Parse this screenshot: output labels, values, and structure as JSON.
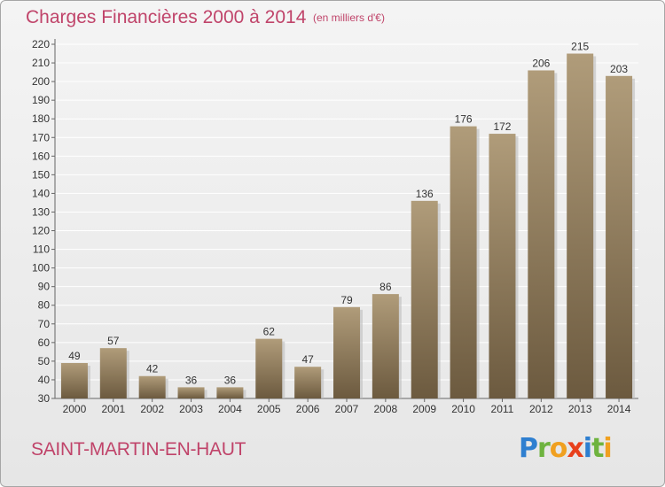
{
  "title": "Charges Financières 2000 à 2014",
  "subtitle": "(en milliers d'€)",
  "city": "SAINT-MARTIN-EN-HAUT",
  "logo": "Proxiti",
  "colors": {
    "title": "#c0446a",
    "bar_top": "#b09c7a",
    "bar_bottom": "#6c5a3f",
    "grid": "#ffffff",
    "axis_text": "#333333"
  },
  "chart_data": {
    "type": "bar",
    "title": "Charges Financières 2000 à 2014",
    "subtitle": "(en milliers d'€)",
    "categories": [
      "2000",
      "2001",
      "2002",
      "2003",
      "2004",
      "2005",
      "2006",
      "2007",
      "2008",
      "2009",
      "2010",
      "2011",
      "2012",
      "2013",
      "2014"
    ],
    "values": [
      49,
      57,
      42,
      36,
      36,
      62,
      47,
      79,
      86,
      136,
      176,
      172,
      206,
      215,
      203
    ],
    "ylim": [
      30,
      220
    ],
    "yticks": [
      30,
      40,
      50,
      60,
      70,
      80,
      90,
      100,
      110,
      120,
      130,
      140,
      150,
      160,
      170,
      180,
      190,
      200,
      210,
      220
    ],
    "grid": true,
    "data_labels": true
  }
}
